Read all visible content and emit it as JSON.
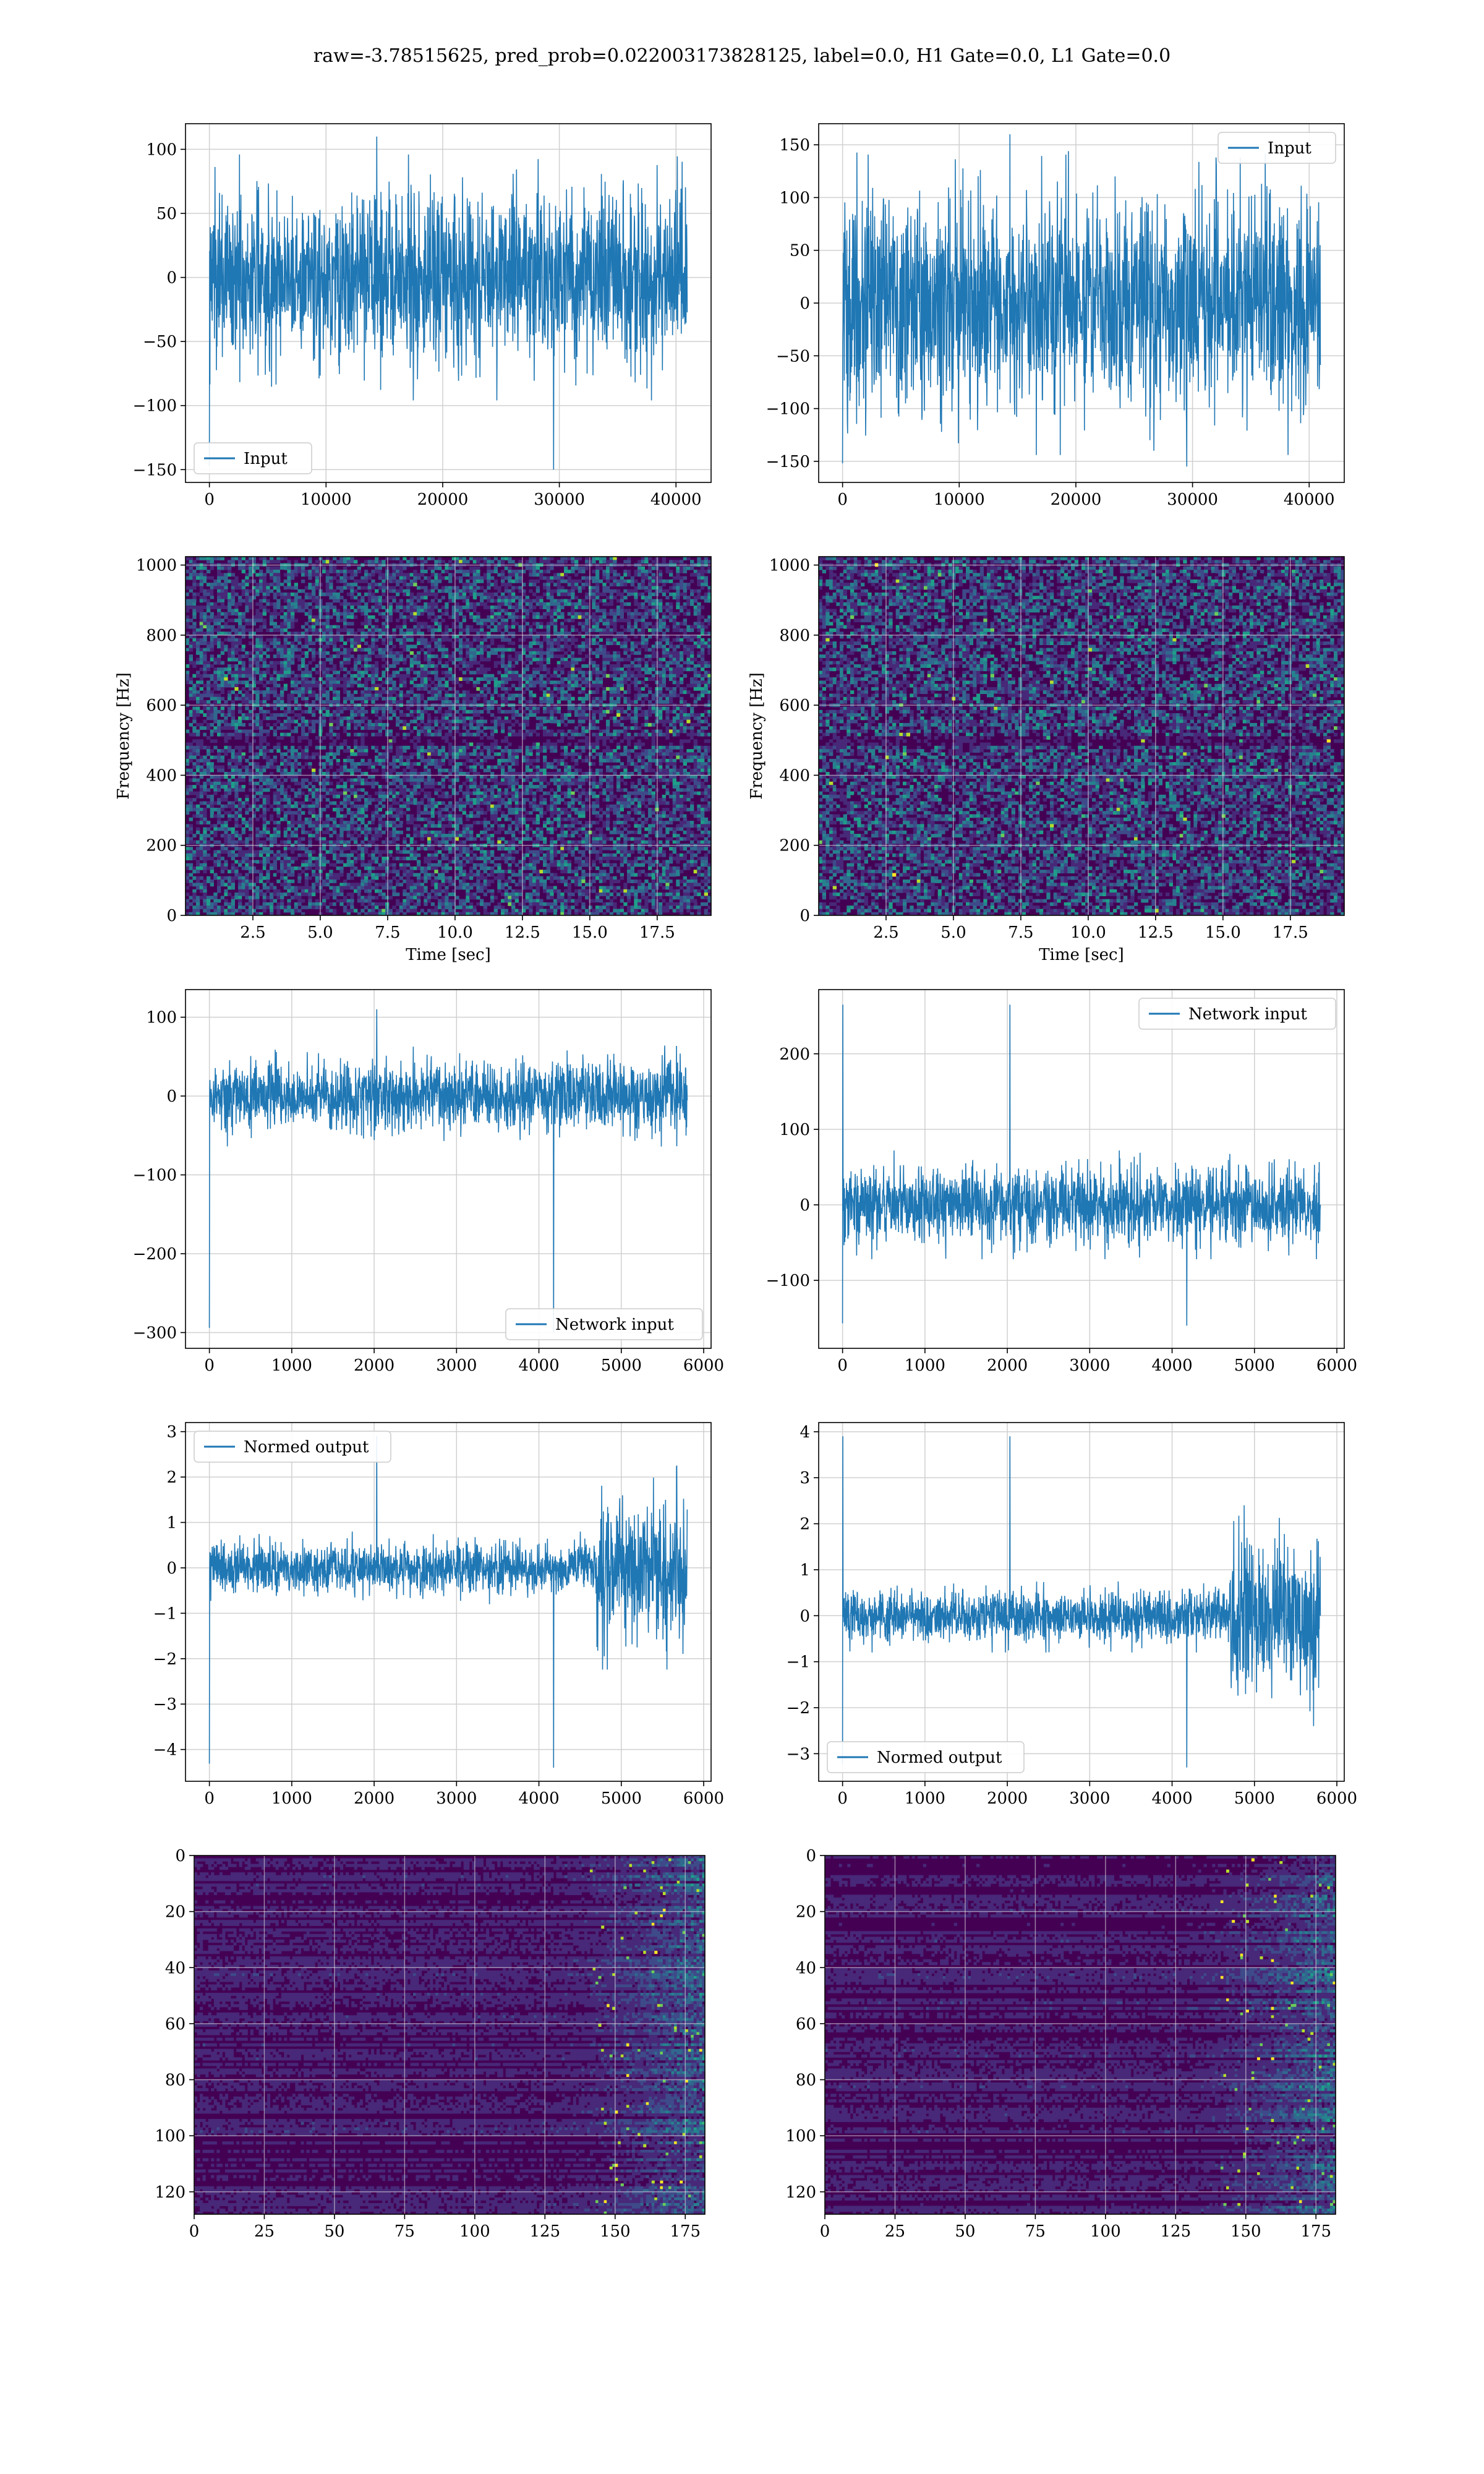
{
  "suptitle": "raw=-3.78515625, pred_prob=0.022003173828125, label=0.0, H1 Gate=0.0, L1 Gate=0.0",
  "colors": {
    "line": "#1f77b4",
    "grid": "#d0d0d0",
    "viridis": [
      "#440154",
      "#482878",
      "#3e4a89",
      "#31688e",
      "#26828e",
      "#1f9e89",
      "#35b779",
      "#6ece58",
      "#b5de2b",
      "#fde725"
    ]
  },
  "chart_data": [
    {
      "id": "input_h1",
      "type": "line",
      "x_range": [
        0,
        40960
      ],
      "envelope": [
        -60,
        60
      ],
      "extremes": [
        -150,
        110
      ],
      "xlim": [
        -2048,
        43008
      ],
      "ylim": [
        -160,
        120
      ],
      "xticks": [
        0,
        10000,
        20000,
        30000,
        40000
      ],
      "xtick_labels": [
        "0",
        "10000",
        "20000",
        "30000",
        "40000"
      ],
      "yticks": [
        -150,
        -100,
        -50,
        0,
        50,
        100
      ],
      "ytick_labels": [
        "−150",
        "−100",
        "−50",
        "0",
        "50",
        "100"
      ],
      "xlabel": "",
      "ylabel": "",
      "grid": true,
      "series": [
        {
          "name": "Input"
        }
      ],
      "legend": "lower-left"
    },
    {
      "id": "input_l1",
      "type": "line",
      "x_range": [
        0,
        40960
      ],
      "envelope": [
        -90,
        90
      ],
      "extremes": [
        -155,
        160
      ],
      "xlim": [
        -2048,
        43008
      ],
      "ylim": [
        -170,
        170
      ],
      "xticks": [
        0,
        10000,
        20000,
        30000,
        40000
      ],
      "xtick_labels": [
        "0",
        "10000",
        "20000",
        "30000",
        "40000"
      ],
      "yticks": [
        -150,
        -100,
        -50,
        0,
        50,
        100,
        150
      ],
      "ytick_labels": [
        "−150",
        "−100",
        "−50",
        "0",
        "50",
        "100",
        "150"
      ],
      "xlabel": "",
      "ylabel": "",
      "grid": true,
      "series": [
        {
          "name": "Input"
        }
      ],
      "legend": "top-right"
    },
    {
      "id": "spec_h1",
      "type": "heatmap",
      "xlim": [
        0,
        19.5
      ],
      "ylim": [
        0,
        1024
      ],
      "xticks": [
        2.5,
        5.0,
        7.5,
        10.0,
        12.5,
        15.0,
        17.5
      ],
      "xtick_labels": [
        "2.5",
        "5.0",
        "7.5",
        "10.0",
        "12.5",
        "15.0",
        "17.5"
      ],
      "yticks": [
        0,
        200,
        400,
        600,
        800,
        1000
      ],
      "ytick_labels": [
        "0",
        "200",
        "400",
        "600",
        "800",
        "1000"
      ],
      "xlabel": "Time [sec]",
      "ylabel": "Frequency [Hz]",
      "grid": true
    },
    {
      "id": "spec_l1",
      "type": "heatmap",
      "xlim": [
        0,
        19.5
      ],
      "ylim": [
        0,
        1024
      ],
      "xticks": [
        2.5,
        5.0,
        7.5,
        10.0,
        12.5,
        15.0,
        17.5
      ],
      "xtick_labels": [
        "2.5",
        "5.0",
        "7.5",
        "10.0",
        "12.5",
        "15.0",
        "17.5"
      ],
      "yticks": [
        0,
        200,
        400,
        600,
        800,
        1000
      ],
      "ytick_labels": [
        "0",
        "200",
        "400",
        "600",
        "800",
        "1000"
      ],
      "xlabel": "Time [sec]",
      "ylabel": "Frequency [Hz]",
      "grid": true
    },
    {
      "id": "network_input_h1",
      "type": "line",
      "x_range": [
        0,
        5800
      ],
      "envelope": [
        -40,
        40
      ],
      "extremes": [
        -300,
        110
      ],
      "xlim": [
        -290,
        6090
      ],
      "ylim": [
        -320,
        135
      ],
      "xticks": [
        0,
        1000,
        2000,
        3000,
        4000,
        5000,
        6000
      ],
      "xtick_labels": [
        "0",
        "1000",
        "2000",
        "3000",
        "4000",
        "5000",
        "6000"
      ],
      "yticks": [
        -300,
        -200,
        -100,
        0,
        100
      ],
      "ytick_labels": [
        "−300",
        "−200",
        "−100",
        "0",
        "100"
      ],
      "xlabel": "",
      "ylabel": "",
      "grid": true,
      "series": [
        {
          "name": "Network input"
        }
      ],
      "legend": "lower-right"
    },
    {
      "id": "network_input_l1",
      "type": "line",
      "x_range": [
        0,
        5800
      ],
      "envelope": [
        -45,
        45
      ],
      "extremes": [
        -160,
        265
      ],
      "xlim": [
        -290,
        6090
      ],
      "ylim": [
        -190,
        285
      ],
      "xticks": [
        0,
        1000,
        2000,
        3000,
        4000,
        5000,
        6000
      ],
      "xtick_labels": [
        "0",
        "1000",
        "2000",
        "3000",
        "4000",
        "5000",
        "6000"
      ],
      "yticks": [
        -100,
        0,
        100,
        200
      ],
      "ytick_labels": [
        "−100",
        "0",
        "100",
        "200"
      ],
      "xlabel": "",
      "ylabel": "",
      "grid": true,
      "series": [
        {
          "name": "Network input"
        }
      ],
      "legend": "top-right"
    },
    {
      "id": "normed_output_h1",
      "type": "line",
      "x_range": [
        0,
        5800
      ],
      "envelope": [
        -0.5,
        0.5
      ],
      "burst_x": [
        4700,
        5800
      ],
      "burst_envelope": [
        -1.4,
        1.4
      ],
      "extremes": [
        -4.4,
        2.9
      ],
      "xlim": [
        -290,
        6090
      ],
      "ylim": [
        -4.7,
        3.2
      ],
      "xticks": [
        0,
        1000,
        2000,
        3000,
        4000,
        5000,
        6000
      ],
      "xtick_labels": [
        "0",
        "1000",
        "2000",
        "3000",
        "4000",
        "5000",
        "6000"
      ],
      "yticks": [
        -4,
        -3,
        -2,
        -1,
        0,
        1,
        2,
        3
      ],
      "ytick_labels": [
        "−4",
        "−3",
        "−2",
        "−1",
        "0",
        "1",
        "2",
        "3"
      ],
      "xlabel": "",
      "ylabel": "",
      "grid": true,
      "series": [
        {
          "name": "Normed output"
        }
      ],
      "legend": "top-left"
    },
    {
      "id": "normed_output_l1",
      "type": "line",
      "x_range": [
        0,
        5800
      ],
      "envelope": [
        -0.5,
        0.5
      ],
      "burst_x": [
        4700,
        5800
      ],
      "burst_envelope": [
        -1.5,
        1.5
      ],
      "extremes": [
        -3.3,
        3.9
      ],
      "xlim": [
        -290,
        6090
      ],
      "ylim": [
        -3.6,
        4.2
      ],
      "xticks": [
        0,
        1000,
        2000,
        3000,
        4000,
        5000,
        6000
      ],
      "xtick_labels": [
        "0",
        "1000",
        "2000",
        "3000",
        "4000",
        "5000",
        "6000"
      ],
      "yticks": [
        -3,
        -2,
        -1,
        0,
        1,
        2,
        3,
        4
      ],
      "ytick_labels": [
        "−3",
        "−2",
        "−1",
        "0",
        "1",
        "2",
        "3",
        "4"
      ],
      "xlabel": "",
      "ylabel": "",
      "grid": true,
      "series": [
        {
          "name": "Normed output"
        }
      ],
      "legend": "lower-left"
    },
    {
      "id": "feature_map_h1",
      "type": "heatmap",
      "xlim": [
        0,
        182
      ],
      "ylim": [
        0,
        128
      ],
      "y_inverted": true,
      "xticks": [
        0,
        25,
        50,
        75,
        100,
        125,
        150,
        175
      ],
      "xtick_labels": [
        "0",
        "25",
        "50",
        "75",
        "100",
        "125",
        "150",
        "175"
      ],
      "yticks": [
        0,
        20,
        40,
        60,
        80,
        100,
        120
      ],
      "ytick_labels": [
        "0",
        "20",
        "40",
        "60",
        "80",
        "100",
        "120"
      ],
      "xlabel": "",
      "ylabel": "",
      "grid": true
    },
    {
      "id": "feature_map_l1",
      "type": "heatmap",
      "xlim": [
        0,
        182
      ],
      "ylim": [
        0,
        128
      ],
      "y_inverted": true,
      "xticks": [
        0,
        25,
        50,
        75,
        100,
        125,
        150,
        175
      ],
      "xtick_labels": [
        "0",
        "25",
        "50",
        "75",
        "100",
        "125",
        "150",
        "175"
      ],
      "yticks": [
        0,
        20,
        40,
        60,
        80,
        100,
        120
      ],
      "ytick_labels": [
        "0",
        "20",
        "40",
        "60",
        "80",
        "100",
        "120"
      ],
      "xlabel": "",
      "ylabel": "",
      "grid": true
    }
  ]
}
